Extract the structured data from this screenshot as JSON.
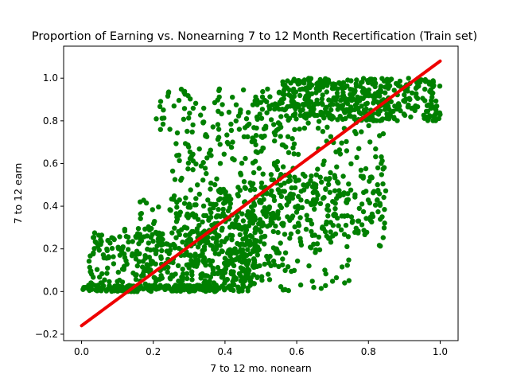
{
  "chart_data": {
    "type": "scatter",
    "title": "Proportion of Earning vs. Nonearning 7 to 12 Month Recertification (Train set)",
    "xlabel": "7 to 12 mo. nonearn",
    "ylabel": "7 to 12 earn",
    "xlim": [
      -0.05,
      1.05
    ],
    "ylim": [
      -0.23,
      1.15
    ],
    "x_ticks": [
      "0.0",
      "0.2",
      "0.4",
      "0.6",
      "0.8",
      "1.0"
    ],
    "y_ticks": [
      "−0.2",
      "0.0",
      "0.2",
      "0.4",
      "0.6",
      "0.8",
      "1.0"
    ],
    "grid": false,
    "legend": "none",
    "series": [
      {
        "kind": "points",
        "color": "#008000",
        "clusters": [
          {
            "x_range": [
              0.0,
              0.45
            ],
            "y_range": [
              0.0,
              0.03
            ],
            "n": 160
          },
          {
            "x_range": [
              0.02,
              0.5
            ],
            "y_range": [
              0.0,
              0.3
            ],
            "n": 360
          },
          {
            "x_range": [
              0.15,
              0.55
            ],
            "y_range": [
              0.05,
              0.45
            ],
            "n": 220
          },
          {
            "x_range": [
              0.25,
              0.6
            ],
            "y_range": [
              0.3,
              0.75
            ],
            "n": 160
          },
          {
            "x_range": [
              0.35,
              0.75
            ],
            "y_range": [
              0.0,
              0.55
            ],
            "n": 200
          },
          {
            "x_range": [
              0.45,
              0.85
            ],
            "y_range": [
              0.25,
              0.9
            ],
            "n": 200
          },
          {
            "x_range": [
              0.55,
              1.0
            ],
            "y_range": [
              0.8,
              1.0
            ],
            "n": 420
          },
          {
            "x_range": [
              0.2,
              0.55
            ],
            "y_range": [
              0.75,
              0.95
            ],
            "n": 80
          },
          {
            "x_range": [
              0.6,
              0.85
            ],
            "y_range": [
              0.2,
              0.55
            ],
            "n": 70
          }
        ]
      },
      {
        "kind": "fit-line",
        "color": "#ee0000",
        "x": [
          0.0,
          1.0
        ],
        "y": [
          -0.16,
          1.08
        ]
      }
    ]
  }
}
